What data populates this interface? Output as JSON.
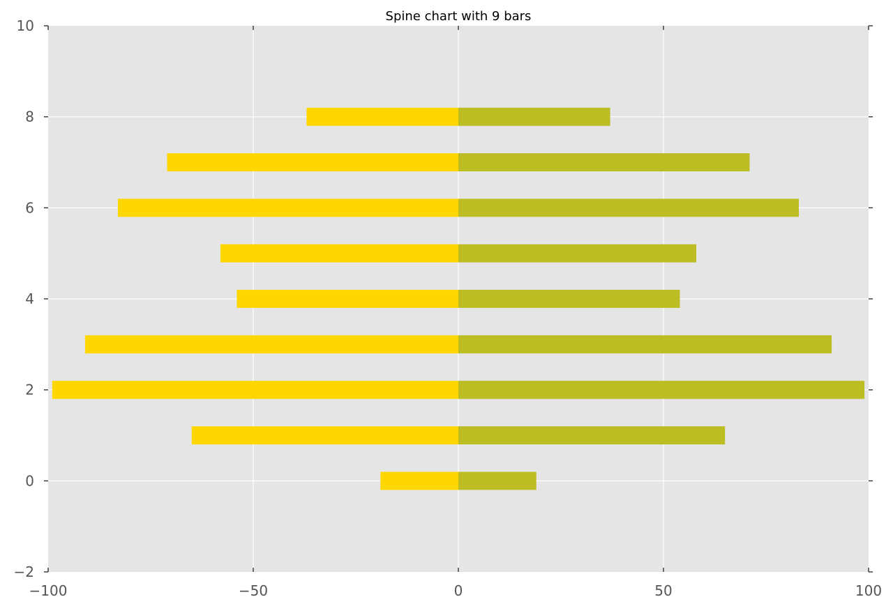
{
  "chart_data": {
    "type": "bar",
    "orientation": "horizontal",
    "title": "Spine chart with 9 bars",
    "xlabel": "",
    "ylabel": "",
    "xlim": [
      -100,
      100
    ],
    "ylim": [
      -2,
      10
    ],
    "xticks": [
      -100,
      -50,
      0,
      50,
      100
    ],
    "xtick_labels": [
      "−100",
      "−50",
      "0",
      "50",
      "100"
    ],
    "yticks": [
      -2,
      0,
      2,
      4,
      6,
      8,
      10
    ],
    "ytick_labels": [
      "−2",
      "0",
      "2",
      "4",
      "6",
      "8",
      "10"
    ],
    "grid": true,
    "background": "#e5e5e5",
    "categories": [
      0,
      1,
      2,
      3,
      4,
      5,
      6,
      7,
      8
    ],
    "series": [
      {
        "color": "#ffd700",
        "values": [
          -19,
          -65,
          -99,
          -91,
          -54,
          -58,
          -83,
          -71,
          -37
        ]
      },
      {
        "color": "#bcbd22",
        "values": [
          19,
          65,
          99,
          91,
          54,
          58,
          83,
          71,
          37
        ]
      }
    ]
  }
}
